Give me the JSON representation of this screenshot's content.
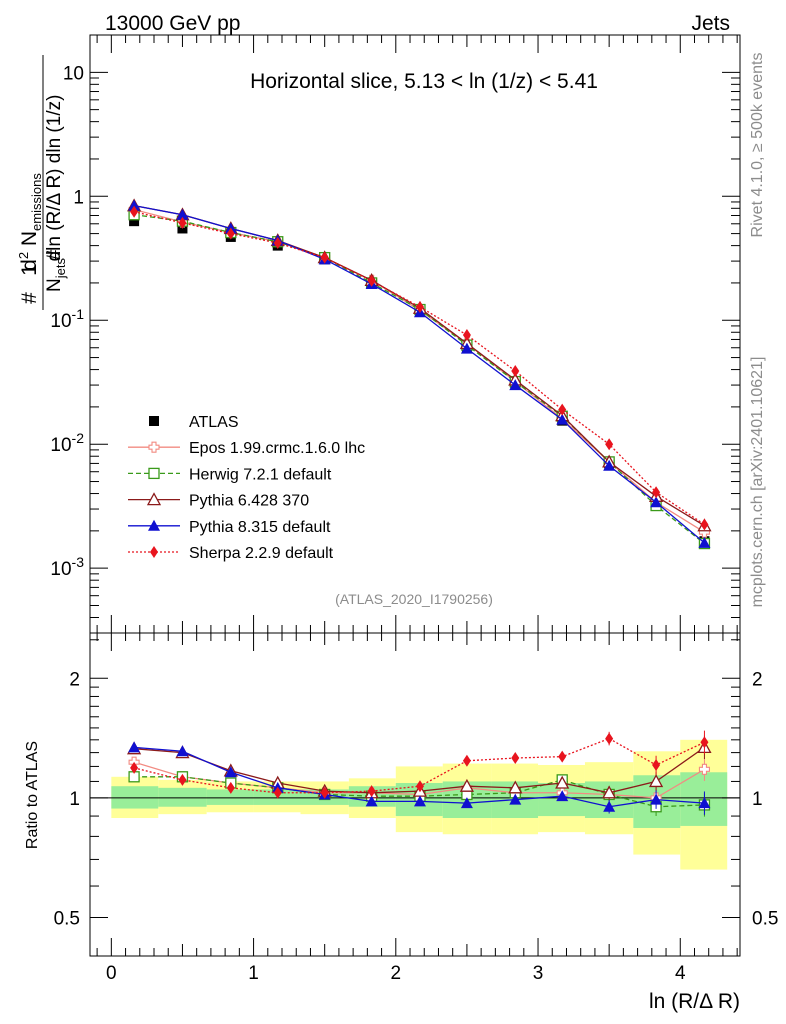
{
  "header": {
    "energy": "13000 GeV pp",
    "category": "Jets"
  },
  "side_labels": {
    "rivet": "Rivet 4.1.0, ≥ 500k events",
    "mcplots": "mcplots.cern.ch [arXiv:2401.10621]"
  },
  "chart_data": [
    {
      "type": "line",
      "title": "Horizontal slice, 5.13 < ln (1/z) < 5.41",
      "watermark": "(ATLAS_2020_I1790256)",
      "xlabel": "ln (R/Δ R)",
      "ylabel": "1/N_jets d²N_emissions / dln(R/ΔR) dln(1/z)",
      "yscale": "log",
      "xlim": [
        -0.15,
        4.42
      ],
      "ylim": [
        0.0003,
        20
      ],
      "x_ticks": [
        "0",
        "1",
        "2",
        "3",
        "4"
      ],
      "y_ticks": [
        "10",
        "1",
        "10⁻¹",
        "10⁻²",
        "10⁻³"
      ],
      "legend_position": "left-middle",
      "x": [
        0.16,
        0.5,
        0.84,
        1.17,
        1.5,
        1.83,
        2.17,
        2.5,
        2.84,
        3.17,
        3.5,
        3.83,
        4.17
      ],
      "series": [
        {
          "name": "ATLAS",
          "color": "#000000",
          "marker": "square-filled",
          "line": "none",
          "values": [
            0.63,
            0.55,
            0.47,
            0.4,
            0.31,
            0.2,
            0.12,
            0.061,
            0.031,
            0.0155,
            0.007,
            0.0034,
            0.00165
          ]
        },
        {
          "name": "Epos 1.99.crmc.1.6.0 lhc",
          "color": "#f28b82",
          "marker": "cross-open",
          "line": "solid",
          "values": [
            0.78,
            0.62,
            0.51,
            0.43,
            0.32,
            0.21,
            0.12,
            0.065,
            0.032,
            0.016,
            0.0072,
            0.0034,
            0.00195
          ]
        },
        {
          "name": "Herwig 7.2.1 default",
          "color": "#3a9a1a",
          "marker": "square-open",
          "line": "dashed",
          "values": [
            0.71,
            0.63,
            0.51,
            0.43,
            0.32,
            0.2,
            0.122,
            0.063,
            0.032,
            0.0168,
            0.0072,
            0.0032,
            0.00158
          ]
        },
        {
          "name": "Pythia 6.428 370",
          "color": "#8b1a1a",
          "marker": "triangle-open",
          "line": "solid",
          "values": [
            0.84,
            0.71,
            0.55,
            0.44,
            0.32,
            0.21,
            0.125,
            0.065,
            0.033,
            0.017,
            0.0072,
            0.0038,
            0.0022
          ]
        },
        {
          "name": "Pythia 8.315 default",
          "color": "#1010d0",
          "marker": "triangle-filled",
          "line": "solid",
          "values": [
            0.84,
            0.71,
            0.55,
            0.44,
            0.31,
            0.196,
            0.116,
            0.059,
            0.03,
            0.0158,
            0.0067,
            0.0034,
            0.0016
          ]
        },
        {
          "name": "Sherpa 2.2.9 default",
          "color": "#e8141e",
          "marker": "diamond-filled",
          "line": "dotted",
          "values": [
            0.75,
            0.61,
            0.5,
            0.42,
            0.32,
            0.208,
            0.128,
            0.076,
            0.039,
            0.019,
            0.01,
            0.0041,
            0.00225
          ]
        }
      ]
    },
    {
      "type": "line",
      "ylabel": "Ratio to ATLAS",
      "xlabel": "ln (R/Δ R)",
      "yscale": "log",
      "xlim": [
        -0.15,
        4.42
      ],
      "ylim": [
        0.4,
        2.6
      ],
      "y_ticks": [
        "2",
        "1",
        "0.5"
      ],
      "x_ticks": [
        "0",
        "1",
        "2",
        "3",
        "4"
      ],
      "bin_edges": [
        0,
        0.33,
        0.67,
        1.0,
        1.33,
        1.67,
        2.0,
        2.33,
        2.67,
        3.0,
        3.33,
        3.67,
        4.0,
        4.33
      ],
      "band_inner": [
        [
          0.94,
          1.07
        ],
        [
          0.95,
          1.06
        ],
        [
          0.96,
          1.05
        ],
        [
          0.96,
          1.05
        ],
        [
          0.96,
          1.05
        ],
        [
          0.95,
          1.07
        ],
        [
          0.9,
          1.09
        ],
        [
          0.89,
          1.1
        ],
        [
          0.89,
          1.1
        ],
        [
          0.9,
          1.09
        ],
        [
          0.89,
          1.1
        ],
        [
          0.84,
          1.14
        ],
        [
          0.85,
          1.16
        ]
      ],
      "band_outer": [
        [
          0.89,
          1.13
        ],
        [
          0.91,
          1.11
        ],
        [
          0.92,
          1.1
        ],
        [
          0.92,
          1.1
        ],
        [
          0.91,
          1.1
        ],
        [
          0.89,
          1.12
        ],
        [
          0.82,
          1.2
        ],
        [
          0.81,
          1.22
        ],
        [
          0.81,
          1.22
        ],
        [
          0.82,
          1.21
        ],
        [
          0.81,
          1.23
        ],
        [
          0.72,
          1.31
        ],
        [
          0.66,
          1.4
        ]
      ],
      "series": [
        {
          "name": "Epos 1.99.crmc.1.6.0 lhc",
          "values": [
            1.23,
            1.13,
            1.09,
            1.06,
            1.03,
            1.03,
            1.02,
            1.06,
            1.03,
            1.03,
            1.02,
            1.0,
            1.18
          ]
        },
        {
          "name": "Herwig 7.2.1 default",
          "values": [
            1.13,
            1.13,
            1.09,
            1.06,
            1.02,
            1.01,
            1.01,
            1.02,
            1.03,
            1.11,
            1.02,
            0.95,
            0.96
          ]
        },
        {
          "name": "Pythia 6.428 370",
          "values": [
            1.33,
            1.3,
            1.17,
            1.09,
            1.04,
            1.03,
            1.04,
            1.07,
            1.06,
            1.09,
            1.03,
            1.1,
            1.34
          ]
        },
        {
          "name": "Pythia 8.315 default",
          "values": [
            1.34,
            1.31,
            1.16,
            1.06,
            1.02,
            0.98,
            0.98,
            0.97,
            0.99,
            1.01,
            0.95,
            0.99,
            0.97
          ]
        },
        {
          "name": "Sherpa 2.2.9 default",
          "values": [
            1.19,
            1.11,
            1.06,
            1.03,
            1.03,
            1.04,
            1.07,
            1.24,
            1.26,
            1.27,
            1.41,
            1.21,
            1.38
          ]
        }
      ]
    }
  ]
}
